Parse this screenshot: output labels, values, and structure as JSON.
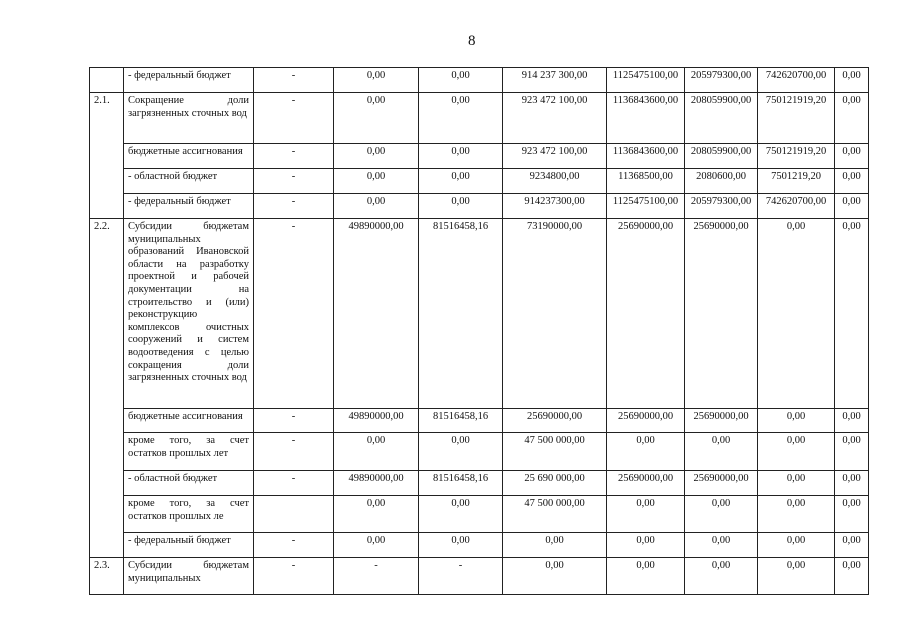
{
  "page_number": "8",
  "rows": [
    {
      "num": "",
      "name": "- федеральный бюджет",
      "vals": [
        "-",
        "0,00",
        "0,00",
        "914 237 300,00",
        "1125475100,00",
        "205979300,00",
        "742620700,00",
        "0,00"
      ]
    },
    {
      "num": "2.1.",
      "name": "Сокращение доли загрязненных сточных вод",
      "vals": [
        "-",
        "0,00",
        "0,00",
        "923 472 100,00",
        "1136843600,00",
        "208059900,00",
        "750121919,20",
        "0,00"
      ]
    },
    {
      "num": "",
      "name": "бюджетные ассигнования",
      "vals": [
        "-",
        "0,00",
        "0,00",
        "923 472 100,00",
        "1136843600,00",
        "208059900,00",
        "750121919,20",
        "0,00"
      ]
    },
    {
      "num": "",
      "name": "- областной бюджет",
      "vals": [
        "-",
        "0,00",
        "0,00",
        "9234800,00",
        "11368500,00",
        "2080600,00",
        "7501219,20",
        "0,00"
      ]
    },
    {
      "num": "",
      "name": "- федеральный бюджет",
      "vals": [
        "-",
        "0,00",
        "0,00",
        "914237300,00",
        "1125475100,00",
        "205979300,00",
        "742620700,00",
        "0,00"
      ]
    },
    {
      "num": "2.2.",
      "name": "Субсидии бюджетам муниципальных образований Ивановской области на разработку проектной и рабочей документации на строительство и (или) реконструкцию комплексов очистных сооружений и систем водоотведения с целью сокращения доли загрязненных сточных вод",
      "vals": [
        "-",
        "49890000,00",
        "81516458,16",
        "73190000,00",
        "25690000,00",
        "25690000,00",
        "0,00",
        "0,00"
      ]
    },
    {
      "num": "",
      "name": "бюджетные ассигнования",
      "vals": [
        "-",
        "49890000,00",
        "81516458,16",
        "25690000,00",
        "25690000,00",
        "25690000,00",
        "0,00",
        "0,00"
      ]
    },
    {
      "num": "",
      "name": "кроме того, за счет остатков прошлых лет",
      "vals": [
        "-",
        "0,00",
        "0,00",
        "47 500 000,00",
        "0,00",
        "0,00",
        "0,00",
        "0,00"
      ]
    },
    {
      "num": "",
      "name": "- областной бюджет",
      "vals": [
        "-",
        "49890000,00",
        "81516458,16",
        "25 690 000,00",
        "25690000,00",
        "25690000,00",
        "0,00",
        "0,00"
      ]
    },
    {
      "num": "",
      "name": "кроме того, за счет остатков прошлых ле",
      "vals": [
        "",
        "0,00",
        "0,00",
        "47 500 000,00",
        "0,00",
        "0,00",
        "0,00",
        "0,00"
      ]
    },
    {
      "num": "",
      "name": "- федеральный бюджет",
      "vals": [
        "-",
        "0,00",
        "0,00",
        "0,00",
        "0,00",
        "0,00",
        "0,00",
        "0,00"
      ]
    },
    {
      "num": "2.3.",
      "name": "Субсидии бюджетам муниципальных",
      "vals": [
        "-",
        "-",
        "-",
        "0,00",
        "0,00",
        "0,00",
        "0,00",
        "0,00"
      ]
    }
  ]
}
